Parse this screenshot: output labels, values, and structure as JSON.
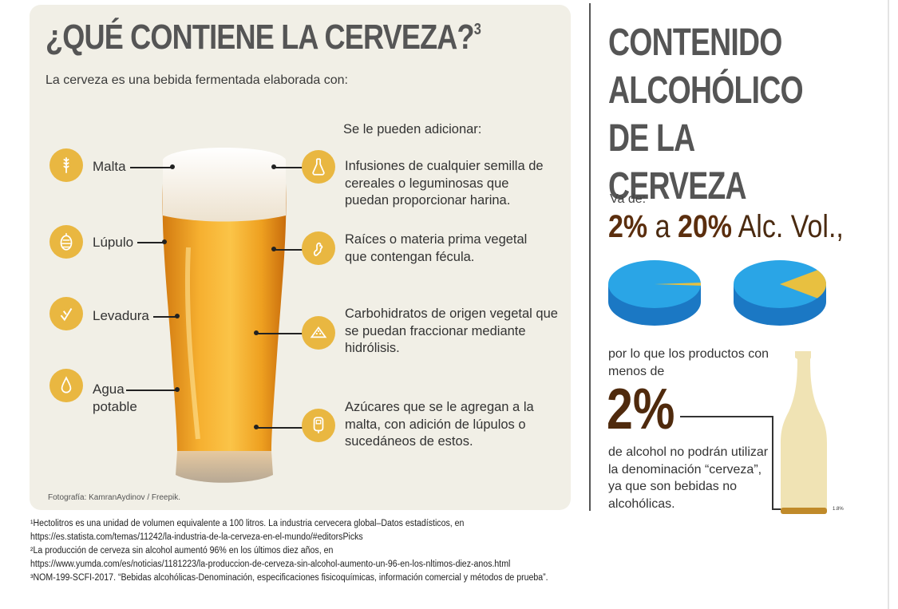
{
  "left_panel": {
    "title": "¿QUÉ CONTIENE LA CERVEZA?",
    "title_sup": "3",
    "subtitle": "La cerveza es una bebida fermentada elaborada con:",
    "ingredients": [
      {
        "label": "Malta",
        "icon": "wheat-icon"
      },
      {
        "label": "Lúpulo",
        "icon": "hop-icon"
      },
      {
        "label": "Levadura",
        "icon": "yeast-icon"
      },
      {
        "label": "Agua\npotable",
        "icon": "water-drop-icon"
      }
    ],
    "additions_heading": "Se le pueden adicionar:",
    "additions": [
      {
        "text": "Infusiones de cualquier semilla de cereales o leguminosas que puedan proporcionar harina.",
        "icon": "flask-icon"
      },
      {
        "text": "Raíces o materia prima vegetal que contengan fécula.",
        "icon": "ginger-root-icon"
      },
      {
        "text": "Carbohidratos de origen vegetal que se puedan fraccionar mediante hidrólisis.",
        "icon": "bread-icon"
      },
      {
        "text": "Azúcares que se le agregan a la malta, con adición de lúpulos o sucedáneos de estos.",
        "icon": "glucometer-icon"
      }
    ],
    "photo_credit": "Fotografía: KamranAydinov / Freepik."
  },
  "right_panel": {
    "title": "CONTENIDO ALCOHÓLICO DE LA CERVEZA",
    "range_intro": "Va de:",
    "range_min": "2%",
    "range_connector": "a",
    "range_max": "20%",
    "range_unit": "Alc. Vol.,",
    "pie_values": [
      2,
      20
    ],
    "text_before": "por lo que los productos con menos de",
    "big_value": "2%",
    "text_after": "de alcohol no podrán utilizar la denominación “cerveza”, ya que son bebidas no alcohólicas.",
    "bottle_label": "1.8%",
    "bottle_fill": 0.018,
    "colors": {
      "pie_main": "#2aa5e6",
      "pie_dark": "#1b78c4",
      "pie_slice": "#e8c040",
      "bottle": "#f0e3b4",
      "bottle_fill": "#c08a2a"
    }
  },
  "footnotes": [
    "¹Hectolitros es una unidad de volumen equivalente a 100 litros. La industria cervecera global–Datos estadísticos, en",
    "https://es.statista.com/temas/11242/la-industria-de-la-cerveza-en-el-mundo/#editorsPicks",
    "²La producción de cerveza sin alcohol aumentó 96% en los últimos diez años, en",
    "https://www.yumda.com/es/noticias/1181223/la-produccion-de-cerveza-sin-alcohol-aumento-un-96-en-los-nltimos-diez-anos.html",
    "³NOM-199-SCFI-2017. “Bebidas alcohólicas-Denominación, especificaciones fisicoquímicas, información comercial y métodos de prueba”."
  ]
}
